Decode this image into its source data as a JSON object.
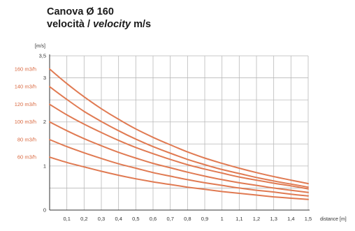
{
  "header": {
    "title": "Canova Ø 160",
    "subtitle_it": "velocità /",
    "subtitle_en": "velocity",
    "subtitle_unit": "m/s"
  },
  "colors": {
    "curve": "#e07a52",
    "label": "#d9683f",
    "grid": "#b9b9b9",
    "axis": "#333333"
  },
  "chart_data": {
    "type": "line",
    "title": "Canova Ø 160 velocità / velocity m/s",
    "ylabel": "[m/s]",
    "xlabel": "distance [m]",
    "xlim": [
      0,
      1.5
    ],
    "ylim": [
      0,
      3.5
    ],
    "x_ticks": [
      "0,1",
      "0,2",
      "0,3",
      "0,4",
      "0,5",
      "0,6",
      "0,7",
      "0,8",
      "0,9",
      "1",
      "1,1",
      "1,2",
      "1,3",
      "1,4",
      "1,5"
    ],
    "y_ticks": [
      "0",
      "1",
      "2",
      "3",
      "3,5"
    ],
    "x": [
      0,
      0.1,
      0.2,
      0.3,
      0.4,
      0.5,
      0.6,
      0.7,
      0.8,
      0.9,
      1.0,
      1.1,
      1.2,
      1.3,
      1.4,
      1.5
    ],
    "series": [
      {
        "name": "160 m3/h",
        "values": [
          3.2,
          2.87,
          2.57,
          2.3,
          2.06,
          1.84,
          1.65,
          1.48,
          1.32,
          1.18,
          1.06,
          0.95,
          0.85,
          0.76,
          0.68,
          0.6
        ]
      },
      {
        "name": "140 m3/h",
        "values": [
          2.8,
          2.51,
          2.24,
          2.01,
          1.8,
          1.61,
          1.44,
          1.29,
          1.15,
          1.03,
          0.92,
          0.83,
          0.74,
          0.66,
          0.59,
          0.52
        ]
      },
      {
        "name": "120 m3/h",
        "values": [
          2.4,
          2.16,
          1.95,
          1.76,
          1.58,
          1.42,
          1.28,
          1.15,
          1.03,
          0.93,
          0.84,
          0.75,
          0.68,
          0.61,
          0.55,
          0.48
        ]
      },
      {
        "name": "100 m3/h",
        "values": [
          2.0,
          1.8,
          1.62,
          1.46,
          1.31,
          1.18,
          1.06,
          0.96,
          0.86,
          0.77,
          0.69,
          0.62,
          0.56,
          0.5,
          0.45,
          0.4
        ]
      },
      {
        "name": "80 m3/h",
        "values": [
          1.6,
          1.44,
          1.3,
          1.17,
          1.05,
          0.95,
          0.85,
          0.77,
          0.69,
          0.62,
          0.56,
          0.5,
          0.45,
          0.41,
          0.36,
          0.32
        ]
      },
      {
        "name": "60 m3/h",
        "values": [
          1.2,
          1.08,
          0.98,
          0.88,
          0.79,
          0.71,
          0.64,
          0.58,
          0.52,
          0.47,
          0.42,
          0.38,
          0.34,
          0.3,
          0.27,
          0.24
        ]
      }
    ],
    "grid": true,
    "legend": "left"
  }
}
